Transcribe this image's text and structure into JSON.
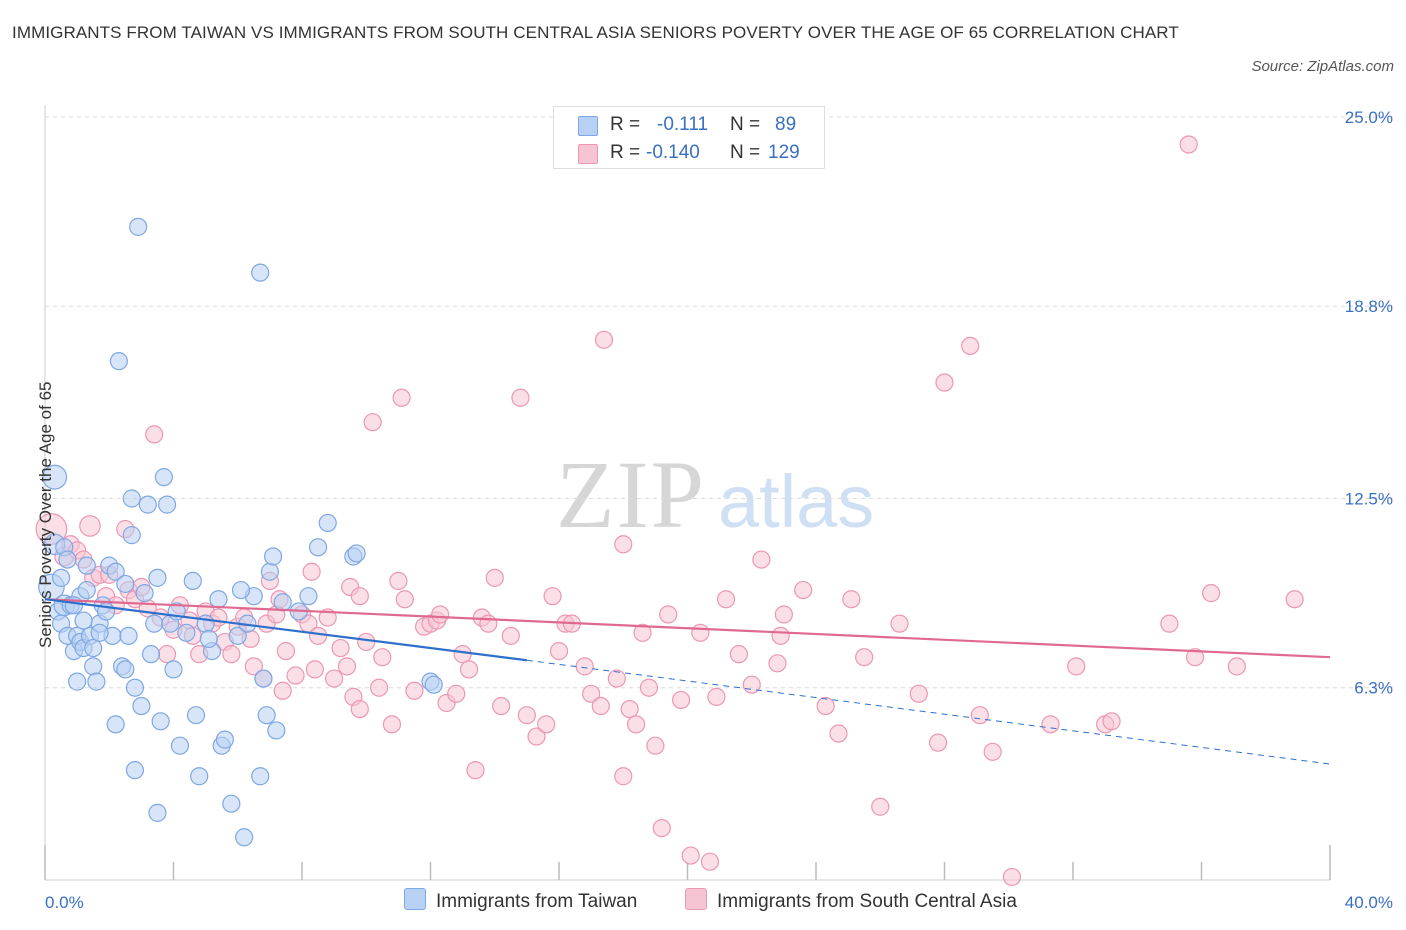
{
  "title": "IMMIGRANTS FROM TAIWAN VS IMMIGRANTS FROM SOUTH CENTRAL ASIA SENIORS POVERTY OVER THE AGE OF 65 CORRELATION CHART",
  "source": "Source: ZipAtlas.com",
  "watermark": {
    "zip": "ZIP",
    "atlas": "atlas"
  },
  "legend": {
    "r_label": "R =",
    "n_label": "N =",
    "rows": [
      {
        "r": "-0.111",
        "n": "89"
      },
      {
        "r": "-0.140",
        "n": "129"
      }
    ]
  },
  "colors": {
    "taiwan_fill": "#b8d0f3",
    "taiwan_stroke": "#7ea8e3",
    "taiwan_line": "#2f6fcc",
    "sca_fill": "#f7c4d3",
    "sca_stroke": "#ec97b3",
    "sca_line": "#e06990",
    "axis_label": "#3a70c2",
    "grid": "#dcdcdc"
  },
  "chart_data": {
    "type": "scatter",
    "title": "IMMIGRANTS FROM TAIWAN VS IMMIGRANTS FROM SOUTH CENTRAL ASIA SENIORS POVERTY OVER THE AGE OF 65 CORRELATION CHART",
    "xlabel": "",
    "ylabel": "Seniors Poverty Over the Age of 65",
    "xlim": [
      0,
      40
    ],
    "ylim": [
      0,
      25
    ],
    "x_tick_labels": [
      "0.0%",
      "40.0%"
    ],
    "y_ticks": [
      6.3,
      12.5,
      18.8,
      25.0
    ],
    "y_tick_labels": [
      "6.3%",
      "12.5%",
      "18.8%",
      "25.0%"
    ],
    "grid": "horizontal dashed",
    "legend_placement": "bottom",
    "series": [
      {
        "name": "Immigrants from Taiwan",
        "R": -0.111,
        "N": 89,
        "trend": {
          "x0": 0,
          "y0": 9.2,
          "x1": 15,
          "y1": 7.2,
          "dashed_to_x": 40,
          "dashed_y": 3.8
        },
        "points": [
          [
            0.2,
            9.6,
            1.5
          ],
          [
            0.3,
            13.2,
            1.4
          ],
          [
            0.3,
            11.0,
            1.2
          ],
          [
            0.4,
            8.8,
            1.0
          ],
          [
            0.5,
            9.9,
            1.0
          ],
          [
            0.5,
            8.4,
            1.0
          ],
          [
            0.6,
            10.9,
            1.0
          ],
          [
            0.6,
            9.0,
            1.2
          ],
          [
            0.7,
            8.0,
            1.0
          ],
          [
            0.8,
            9.0,
            1.0
          ],
          [
            0.9,
            7.5,
            1.0
          ],
          [
            1.0,
            6.5,
            1.0
          ],
          [
            1.0,
            8.0,
            1.0
          ],
          [
            1.1,
            9.3,
            1.0
          ],
          [
            1.1,
            7.8,
            1.0
          ],
          [
            1.2,
            7.6,
            1.0
          ],
          [
            1.3,
            10.3,
            1.0
          ],
          [
            1.3,
            9.5,
            1.0
          ],
          [
            1.4,
            8.0,
            1.0
          ],
          [
            1.5,
            7.0,
            1.0
          ],
          [
            1.5,
            7.6,
            1.0
          ],
          [
            1.6,
            6.5,
            1.0
          ],
          [
            1.7,
            8.4,
            1.0
          ],
          [
            1.8,
            9.0,
            1.0
          ],
          [
            1.9,
            8.8,
            1.0
          ],
          [
            2.0,
            10.3,
            1.0
          ],
          [
            2.1,
            8.0,
            1.0
          ],
          [
            2.2,
            5.1,
            1.0
          ],
          [
            2.2,
            10.1,
            1.0
          ],
          [
            2.3,
            17.0,
            1.0
          ],
          [
            2.4,
            7.0,
            1.0
          ],
          [
            2.5,
            9.7,
            1.0
          ],
          [
            2.6,
            8.0,
            1.0
          ],
          [
            2.7,
            12.5,
            1.0
          ],
          [
            2.7,
            11.3,
            1.0
          ],
          [
            2.8,
            6.3,
            1.0
          ],
          [
            2.8,
            3.6,
            1.0
          ],
          [
            2.9,
            21.4,
            1.0
          ],
          [
            3.0,
            5.7,
            1.0
          ],
          [
            3.1,
            9.4,
            1.0
          ],
          [
            3.2,
            12.3,
            1.0
          ],
          [
            3.3,
            7.4,
            1.0
          ],
          [
            3.4,
            8.4,
            1.0
          ],
          [
            3.5,
            2.2,
            1.0
          ],
          [
            3.6,
            5.2,
            1.0
          ],
          [
            3.7,
            13.2,
            1.0
          ],
          [
            3.8,
            12.3,
            1.0
          ],
          [
            3.9,
            8.4,
            1.0
          ],
          [
            4.0,
            6.9,
            1.0
          ],
          [
            4.2,
            4.4,
            1.0
          ],
          [
            4.4,
            8.1,
            1.0
          ],
          [
            4.6,
            9.8,
            1.0
          ],
          [
            4.7,
            5.4,
            1.0
          ],
          [
            4.8,
            3.4,
            1.0
          ],
          [
            5.0,
            8.4,
            1.0
          ],
          [
            5.2,
            7.5,
            1.0
          ],
          [
            5.5,
            4.4,
            1.0
          ],
          [
            5.6,
            4.6,
            1.0
          ],
          [
            5.8,
            2.5,
            1.0
          ],
          [
            6.0,
            8.0,
            1.0
          ],
          [
            6.3,
            8.4,
            1.0
          ],
          [
            6.5,
            9.3,
            1.0
          ],
          [
            6.2,
            1.4,
            1.0
          ],
          [
            6.7,
            3.4,
            1.0
          ],
          [
            6.8,
            6.6,
            1.0
          ],
          [
            6.7,
            19.9,
            1.0
          ],
          [
            6.9,
            5.4,
            1.0
          ],
          [
            7.0,
            10.1,
            1.0
          ],
          [
            7.1,
            10.6,
            1.0
          ],
          [
            7.2,
            4.9,
            1.0
          ],
          [
            7.4,
            9.1,
            1.0
          ],
          [
            7.9,
            8.8,
            1.0
          ],
          [
            8.2,
            9.3,
            1.0
          ],
          [
            8.5,
            10.9,
            1.0
          ],
          [
            8.8,
            11.7,
            1.0
          ],
          [
            9.6,
            10.6,
            1.0
          ],
          [
            9.7,
            10.7,
            1.0
          ],
          [
            12.0,
            6.5,
            1.0
          ],
          [
            12.1,
            6.4,
            1.0
          ],
          [
            5.1,
            7.9,
            1.0
          ],
          [
            0.9,
            9.0,
            1.0
          ],
          [
            1.7,
            8.1,
            1.0
          ],
          [
            2.5,
            6.9,
            1.0
          ],
          [
            3.5,
            9.9,
            1.0
          ],
          [
            4.1,
            8.8,
            1.0
          ],
          [
            5.4,
            9.2,
            1.0
          ],
          [
            6.1,
            9.5,
            1.0
          ],
          [
            1.2,
            8.5,
            1.0
          ],
          [
            0.7,
            10.5,
            1.0
          ]
        ]
      },
      {
        "name": "Immigrants from South Central Asia",
        "R": -0.14,
        "N": 129,
        "trend": {
          "x0": 0,
          "y0": 9.2,
          "x1": 40,
          "y1": 7.3
        },
        "points": [
          [
            0.2,
            11.5,
            1.8
          ],
          [
            0.6,
            10.6,
            1.1
          ],
          [
            0.8,
            11.0,
            1.0
          ],
          [
            1.0,
            10.8,
            1.0
          ],
          [
            1.2,
            10.5,
            1.0
          ],
          [
            1.4,
            11.6,
            1.2
          ],
          [
            1.5,
            9.9,
            1.0
          ],
          [
            1.7,
            10.0,
            1.0
          ],
          [
            1.9,
            9.3,
            1.0
          ],
          [
            2.0,
            10.0,
            1.0
          ],
          [
            2.2,
            9.0,
            1.0
          ],
          [
            2.5,
            11.5,
            1.0
          ],
          [
            2.6,
            9.5,
            1.0
          ],
          [
            2.8,
            9.2,
            1.0
          ],
          [
            3.0,
            9.6,
            1.0
          ],
          [
            3.2,
            8.9,
            1.0
          ],
          [
            3.4,
            14.6,
            1.0
          ],
          [
            3.6,
            8.6,
            1.0
          ],
          [
            3.8,
            7.4,
            1.0
          ],
          [
            4.0,
            8.2,
            1.0
          ],
          [
            4.2,
            9.0,
            1.0
          ],
          [
            4.5,
            8.5,
            1.0
          ],
          [
            4.6,
            8.0,
            1.0
          ],
          [
            4.8,
            7.4,
            1.0
          ],
          [
            5.0,
            8.8,
            1.0
          ],
          [
            5.2,
            8.4,
            1.0
          ],
          [
            5.4,
            8.6,
            1.0
          ],
          [
            5.6,
            7.8,
            1.0
          ],
          [
            5.8,
            7.4,
            1.0
          ],
          [
            6.0,
            8.3,
            1.0
          ],
          [
            6.2,
            8.6,
            1.0
          ],
          [
            6.4,
            7.9,
            1.0
          ],
          [
            6.5,
            7.0,
            1.0
          ],
          [
            6.8,
            6.6,
            1.0
          ],
          [
            6.9,
            8.4,
            1.0
          ],
          [
            7.0,
            9.8,
            1.0
          ],
          [
            7.2,
            8.7,
            1.0
          ],
          [
            7.3,
            9.2,
            1.0
          ],
          [
            7.4,
            6.2,
            1.0
          ],
          [
            7.5,
            7.5,
            1.0
          ],
          [
            7.8,
            6.7,
            1.0
          ],
          [
            8.0,
            8.7,
            1.0
          ],
          [
            8.2,
            8.4,
            1.0
          ],
          [
            8.3,
            10.1,
            1.0
          ],
          [
            8.4,
            6.9,
            1.0
          ],
          [
            8.5,
            8.0,
            1.0
          ],
          [
            8.8,
            8.6,
            1.0
          ],
          [
            9.0,
            6.6,
            1.0
          ],
          [
            9.2,
            7.6,
            1.0
          ],
          [
            9.4,
            7.0,
            1.0
          ],
          [
            9.5,
            9.6,
            1.0
          ],
          [
            9.6,
            6.0,
            1.0
          ],
          [
            9.8,
            5.6,
            1.0
          ],
          [
            10.0,
            7.8,
            1.0
          ],
          [
            10.2,
            15.0,
            1.0
          ],
          [
            10.4,
            6.3,
            1.0
          ],
          [
            10.5,
            7.3,
            1.0
          ],
          [
            10.8,
            5.1,
            1.0
          ],
          [
            11.0,
            9.8,
            1.0
          ],
          [
            11.1,
            15.8,
            1.0
          ],
          [
            11.2,
            9.2,
            1.0
          ],
          [
            11.5,
            6.2,
            1.0
          ],
          [
            11.8,
            8.3,
            1.0
          ],
          [
            12.0,
            8.4,
            1.0
          ],
          [
            12.2,
            8.5,
            1.0
          ],
          [
            12.3,
            8.7,
            1.0
          ],
          [
            12.5,
            5.8,
            1.0
          ],
          [
            12.8,
            6.1,
            1.0
          ],
          [
            13.0,
            7.4,
            1.0
          ],
          [
            13.2,
            6.9,
            1.0
          ],
          [
            13.4,
            3.6,
            1.0
          ],
          [
            13.6,
            8.6,
            1.0
          ],
          [
            13.8,
            8.4,
            1.0
          ],
          [
            14.0,
            9.9,
            1.0
          ],
          [
            14.2,
            5.7,
            1.0
          ],
          [
            14.5,
            8.0,
            1.0
          ],
          [
            14.8,
            15.8,
            1.0
          ],
          [
            15.0,
            5.4,
            1.0
          ],
          [
            15.3,
            4.7,
            1.0
          ],
          [
            15.6,
            5.1,
            1.0
          ],
          [
            15.8,
            9.3,
            1.0
          ],
          [
            16.0,
            7.5,
            1.0
          ],
          [
            16.2,
            8.4,
            1.0
          ],
          [
            16.4,
            8.4,
            1.0
          ],
          [
            16.8,
            7.0,
            1.0
          ],
          [
            17.0,
            6.1,
            1.0
          ],
          [
            17.3,
            5.7,
            1.0
          ],
          [
            17.8,
            6.6,
            1.0
          ],
          [
            18.0,
            3.4,
            1.0
          ],
          [
            18.2,
            5.6,
            1.0
          ],
          [
            18.4,
            5.1,
            1.0
          ],
          [
            18.6,
            8.1,
            1.0
          ],
          [
            18.8,
            6.3,
            1.0
          ],
          [
            19.0,
            4.4,
            1.0
          ],
          [
            19.2,
            1.7,
            1.0
          ],
          [
            19.4,
            8.7,
            1.0
          ],
          [
            19.8,
            5.9,
            1.0
          ],
          [
            20.1,
            0.8,
            1.0
          ],
          [
            20.4,
            8.1,
            1.0
          ],
          [
            20.7,
            0.6,
            1.0
          ],
          [
            20.9,
            6.0,
            1.0
          ],
          [
            21.2,
            9.2,
            1.0
          ],
          [
            21.6,
            7.4,
            1.0
          ],
          [
            22.0,
            6.4,
            1.0
          ],
          [
            22.8,
            7.1,
            1.0
          ],
          [
            22.9,
            8.0,
            1.0
          ],
          [
            23.0,
            8.7,
            1.0
          ],
          [
            23.6,
            9.5,
            1.0
          ],
          [
            24.3,
            5.7,
            1.0
          ],
          [
            24.7,
            4.8,
            1.0
          ],
          [
            25.1,
            9.2,
            1.0
          ],
          [
            25.5,
            7.3,
            1.0
          ],
          [
            26.6,
            8.4,
            1.0
          ],
          [
            27.2,
            6.1,
            1.0
          ],
          [
            28.0,
            16.3,
            1.0
          ],
          [
            28.8,
            17.5,
            1.0
          ],
          [
            29.1,
            5.4,
            1.0
          ],
          [
            29.5,
            4.2,
            1.0
          ],
          [
            30.1,
            0.1,
            1.0
          ],
          [
            31.3,
            5.1,
            1.0
          ],
          [
            32.1,
            7.0,
            1.0
          ],
          [
            33.0,
            5.1,
            1.0
          ],
          [
            33.2,
            5.2,
            1.0
          ],
          [
            35.0,
            8.4,
            1.0
          ],
          [
            35.6,
            24.1,
            1.0
          ],
          [
            35.8,
            7.3,
            1.0
          ],
          [
            36.3,
            9.4,
            1.0
          ],
          [
            37.1,
            7.0,
            1.0
          ],
          [
            38.9,
            9.2,
            1.0
          ],
          [
            27.8,
            4.5,
            1.0
          ],
          [
            22.3,
            10.5,
            1.0
          ],
          [
            9.8,
            9.3,
            1.0
          ],
          [
            18.0,
            11.0,
            1.0
          ],
          [
            17.4,
            17.7,
            1.0
          ],
          [
            26.0,
            2.4,
            1.0
          ]
        ]
      }
    ]
  },
  "bottom_legend": [
    "Immigrants from Taiwan",
    "Immigrants from South Central Asia"
  ]
}
